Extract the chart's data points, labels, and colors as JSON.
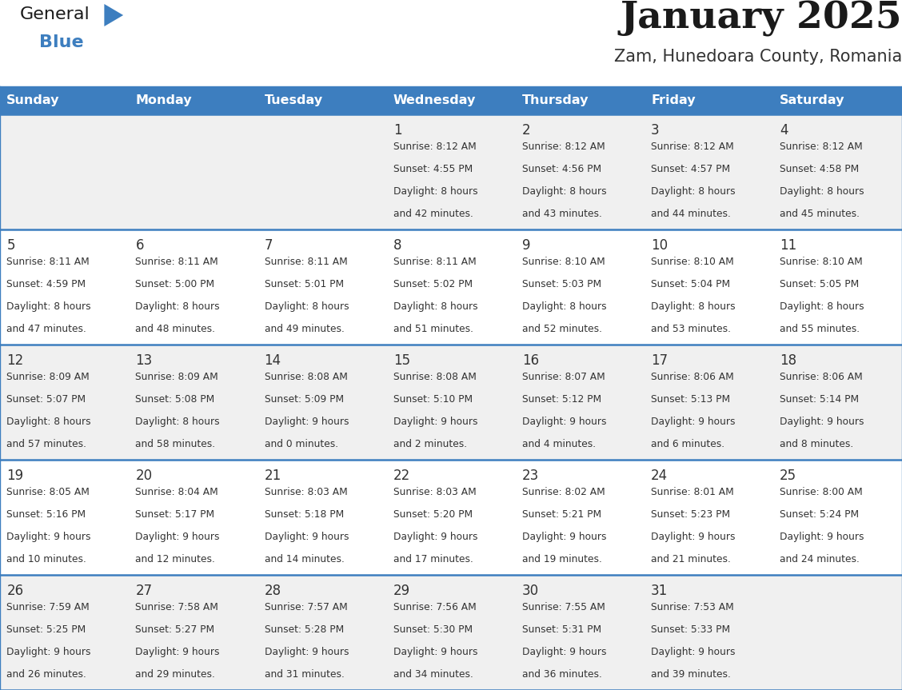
{
  "title": "January 2025",
  "subtitle": "Zam, Hunedoara County, Romania",
  "header_color": "#3d7ebf",
  "header_text_color": "#ffffff",
  "cell_bg_odd": "#f0f0f0",
  "cell_bg_even": "#ffffff",
  "border_color": "#3d7ebf",
  "text_color": "#333333",
  "days_of_week": [
    "Sunday",
    "Monday",
    "Tuesday",
    "Wednesday",
    "Thursday",
    "Friday",
    "Saturday"
  ],
  "weeks": [
    [
      {
        "day": "",
        "sunrise": "",
        "sunset": "",
        "daylight_h": "",
        "daylight_m": ""
      },
      {
        "day": "",
        "sunrise": "",
        "sunset": "",
        "daylight_h": "",
        "daylight_m": ""
      },
      {
        "day": "",
        "sunrise": "",
        "sunset": "",
        "daylight_h": "",
        "daylight_m": ""
      },
      {
        "day": "1",
        "sunrise": "8:12 AM",
        "sunset": "4:55 PM",
        "daylight_h": "8 hours",
        "daylight_m": "and 42 minutes."
      },
      {
        "day": "2",
        "sunrise": "8:12 AM",
        "sunset": "4:56 PM",
        "daylight_h": "8 hours",
        "daylight_m": "and 43 minutes."
      },
      {
        "day": "3",
        "sunrise": "8:12 AM",
        "sunset": "4:57 PM",
        "daylight_h": "8 hours",
        "daylight_m": "and 44 minutes."
      },
      {
        "day": "4",
        "sunrise": "8:12 AM",
        "sunset": "4:58 PM",
        "daylight_h": "8 hours",
        "daylight_m": "and 45 minutes."
      }
    ],
    [
      {
        "day": "5",
        "sunrise": "8:11 AM",
        "sunset": "4:59 PM",
        "daylight_h": "8 hours",
        "daylight_m": "and 47 minutes."
      },
      {
        "day": "6",
        "sunrise": "8:11 AM",
        "sunset": "5:00 PM",
        "daylight_h": "8 hours",
        "daylight_m": "and 48 minutes."
      },
      {
        "day": "7",
        "sunrise": "8:11 AM",
        "sunset": "5:01 PM",
        "daylight_h": "8 hours",
        "daylight_m": "and 49 minutes."
      },
      {
        "day": "8",
        "sunrise": "8:11 AM",
        "sunset": "5:02 PM",
        "daylight_h": "8 hours",
        "daylight_m": "and 51 minutes."
      },
      {
        "day": "9",
        "sunrise": "8:10 AM",
        "sunset": "5:03 PM",
        "daylight_h": "8 hours",
        "daylight_m": "and 52 minutes."
      },
      {
        "day": "10",
        "sunrise": "8:10 AM",
        "sunset": "5:04 PM",
        "daylight_h": "8 hours",
        "daylight_m": "and 53 minutes."
      },
      {
        "day": "11",
        "sunrise": "8:10 AM",
        "sunset": "5:05 PM",
        "daylight_h": "8 hours",
        "daylight_m": "and 55 minutes."
      }
    ],
    [
      {
        "day": "12",
        "sunrise": "8:09 AM",
        "sunset": "5:07 PM",
        "daylight_h": "8 hours",
        "daylight_m": "and 57 minutes."
      },
      {
        "day": "13",
        "sunrise": "8:09 AM",
        "sunset": "5:08 PM",
        "daylight_h": "8 hours",
        "daylight_m": "and 58 minutes."
      },
      {
        "day": "14",
        "sunrise": "8:08 AM",
        "sunset": "5:09 PM",
        "daylight_h": "9 hours",
        "daylight_m": "and 0 minutes."
      },
      {
        "day": "15",
        "sunrise": "8:08 AM",
        "sunset": "5:10 PM",
        "daylight_h": "9 hours",
        "daylight_m": "and 2 minutes."
      },
      {
        "day": "16",
        "sunrise": "8:07 AM",
        "sunset": "5:12 PM",
        "daylight_h": "9 hours",
        "daylight_m": "and 4 minutes."
      },
      {
        "day": "17",
        "sunrise": "8:06 AM",
        "sunset": "5:13 PM",
        "daylight_h": "9 hours",
        "daylight_m": "and 6 minutes."
      },
      {
        "day": "18",
        "sunrise": "8:06 AM",
        "sunset": "5:14 PM",
        "daylight_h": "9 hours",
        "daylight_m": "and 8 minutes."
      }
    ],
    [
      {
        "day": "19",
        "sunrise": "8:05 AM",
        "sunset": "5:16 PM",
        "daylight_h": "9 hours",
        "daylight_m": "and 10 minutes."
      },
      {
        "day": "20",
        "sunrise": "8:04 AM",
        "sunset": "5:17 PM",
        "daylight_h": "9 hours",
        "daylight_m": "and 12 minutes."
      },
      {
        "day": "21",
        "sunrise": "8:03 AM",
        "sunset": "5:18 PM",
        "daylight_h": "9 hours",
        "daylight_m": "and 14 minutes."
      },
      {
        "day": "22",
        "sunrise": "8:03 AM",
        "sunset": "5:20 PM",
        "daylight_h": "9 hours",
        "daylight_m": "and 17 minutes."
      },
      {
        "day": "23",
        "sunrise": "8:02 AM",
        "sunset": "5:21 PM",
        "daylight_h": "9 hours",
        "daylight_m": "and 19 minutes."
      },
      {
        "day": "24",
        "sunrise": "8:01 AM",
        "sunset": "5:23 PM",
        "daylight_h": "9 hours",
        "daylight_m": "and 21 minutes."
      },
      {
        "day": "25",
        "sunrise": "8:00 AM",
        "sunset": "5:24 PM",
        "daylight_h": "9 hours",
        "daylight_m": "and 24 minutes."
      }
    ],
    [
      {
        "day": "26",
        "sunrise": "7:59 AM",
        "sunset": "5:25 PM",
        "daylight_h": "9 hours",
        "daylight_m": "and 26 minutes."
      },
      {
        "day": "27",
        "sunrise": "7:58 AM",
        "sunset": "5:27 PM",
        "daylight_h": "9 hours",
        "daylight_m": "and 29 minutes."
      },
      {
        "day": "28",
        "sunrise": "7:57 AM",
        "sunset": "5:28 PM",
        "daylight_h": "9 hours",
        "daylight_m": "and 31 minutes."
      },
      {
        "day": "29",
        "sunrise": "7:56 AM",
        "sunset": "5:30 PM",
        "daylight_h": "9 hours",
        "daylight_m": "and 34 minutes."
      },
      {
        "day": "30",
        "sunrise": "7:55 AM",
        "sunset": "5:31 PM",
        "daylight_h": "9 hours",
        "daylight_m": "and 36 minutes."
      },
      {
        "day": "31",
        "sunrise": "7:53 AM",
        "sunset": "5:33 PM",
        "daylight_h": "9 hours",
        "daylight_m": "and 39 minutes."
      },
      {
        "day": "",
        "sunrise": "",
        "sunset": "",
        "daylight_h": "",
        "daylight_m": ""
      }
    ]
  ]
}
